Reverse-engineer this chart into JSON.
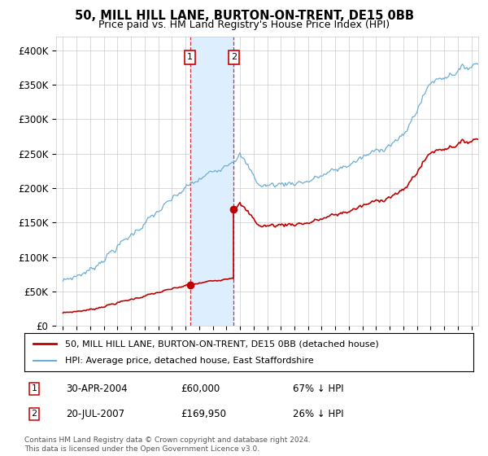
{
  "title": "50, MILL HILL LANE, BURTON-ON-TRENT, DE15 0BB",
  "subtitle": "Price paid vs. HM Land Registry's House Price Index (HPI)",
  "hpi_color": "#6baed6",
  "price_color": "#c00000",
  "transaction_1": {
    "date": "30-APR-2004",
    "price": 60000,
    "pct": "67% ↓ HPI",
    "x": 2004.33
  },
  "transaction_2": {
    "date": "20-JUL-2007",
    "price": 169950,
    "pct": "26% ↓ HPI",
    "x": 2007.55
  },
  "legend_line1": "50, MILL HILL LANE, BURTON-ON-TRENT, DE15 0BB (detached house)",
  "legend_line2": "HPI: Average price, detached house, East Staffordshire",
  "footnote": "Contains HM Land Registry data © Crown copyright and database right 2024.\nThis data is licensed under the Open Government Licence v3.0.",
  "ylabel_ticks": [
    "£0",
    "£50K",
    "£100K",
    "£150K",
    "£200K",
    "£250K",
    "£300K",
    "£350K",
    "£400K"
  ],
  "ytick_values": [
    0,
    50000,
    100000,
    150000,
    200000,
    250000,
    300000,
    350000,
    400000
  ],
  "xlim": [
    1994.5,
    2025.5
  ],
  "ylim": [
    0,
    420000
  ],
  "background_color": "#ffffff",
  "grid_color": "#cccccc",
  "shade_color": "#ddeeff"
}
